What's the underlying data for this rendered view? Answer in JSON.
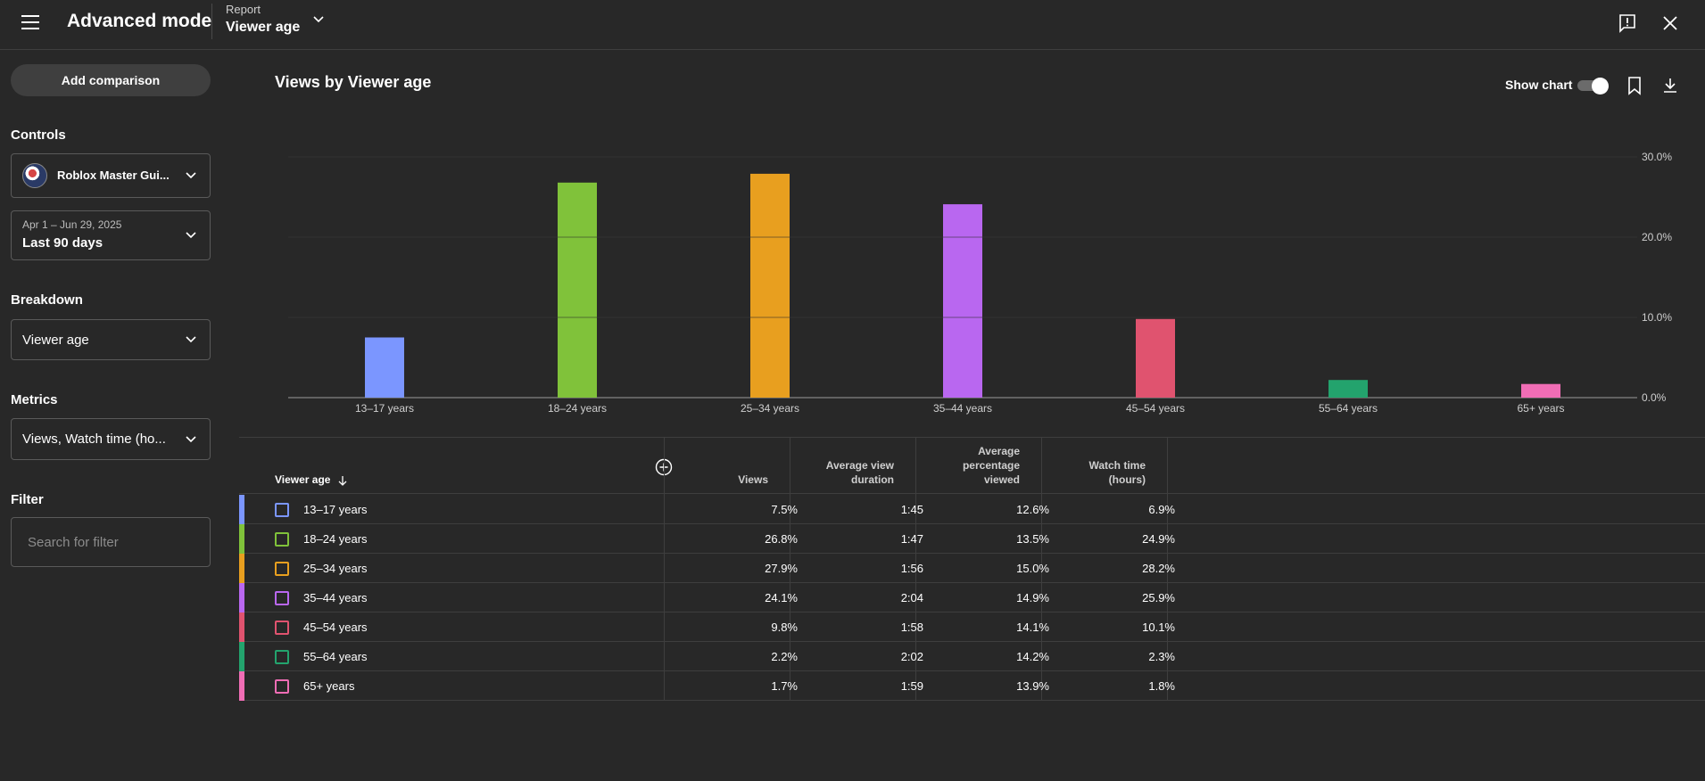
{
  "header": {
    "title": "Advanced mode",
    "report_caption": "Report",
    "report_value": "Viewer age"
  },
  "sidebar": {
    "add_comparison": "Add comparison",
    "controls_label": "Controls",
    "channel_name": "Roblox Master Gui...",
    "date_range_sub": "Apr 1 – Jun 29, 2025",
    "date_range": "Last 90 days",
    "breakdown_label": "Breakdown",
    "breakdown_value": "Viewer age",
    "metrics_label": "Metrics",
    "metrics_value": "Views, Watch time (ho...",
    "filter_label": "Filter",
    "filter_placeholder": "Search for filter"
  },
  "chart_header": {
    "title": "Views by Viewer age",
    "show_chart_label": "Show chart",
    "show_chart_on": true
  },
  "chart_data": {
    "type": "bar",
    "categories": [
      "13–17 years",
      "18–24 years",
      "25–34 years",
      "35–44 years",
      "45–54 years",
      "55–64 years",
      "65+ years"
    ],
    "values": [
      7.5,
      26.8,
      27.9,
      24.1,
      9.8,
      2.2,
      1.7
    ],
    "colors": [
      "#7b96ff",
      "#80c23a",
      "#e89f1f",
      "#b967f0",
      "#e0536f",
      "#23a36d",
      "#f06db5"
    ],
    "ylim": [
      0,
      30
    ],
    "yticks": [
      "0.0%",
      "10.0%",
      "20.0%",
      "30.0%"
    ],
    "grid": true
  },
  "table": {
    "headers": {
      "dimension": "Viewer age",
      "views": "Views",
      "avg_view_duration": [
        "Average view",
        "duration"
      ],
      "avg_pct_viewed": [
        "Average",
        "percentage",
        "viewed"
      ],
      "watch_time": [
        "Watch time",
        "(hours)"
      ]
    },
    "rows": [
      {
        "label": "13–17 years",
        "views": "7.5%",
        "avd": "1:45",
        "apv": "12.6%",
        "wt": "6.9%"
      },
      {
        "label": "18–24 years",
        "views": "26.8%",
        "avd": "1:47",
        "apv": "13.5%",
        "wt": "24.9%"
      },
      {
        "label": "25–34 years",
        "views": "27.9%",
        "avd": "1:56",
        "apv": "15.0%",
        "wt": "28.2%"
      },
      {
        "label": "35–44 years",
        "views": "24.1%",
        "avd": "2:04",
        "apv": "14.9%",
        "wt": "25.9%"
      },
      {
        "label": "45–54 years",
        "views": "9.8%",
        "avd": "1:58",
        "apv": "14.1%",
        "wt": "10.1%"
      },
      {
        "label": "55–64 years",
        "views": "2.2%",
        "avd": "2:02",
        "apv": "14.2%",
        "wt": "2.3%"
      },
      {
        "label": "65+ years",
        "views": "1.7%",
        "avd": "1:59",
        "apv": "13.9%",
        "wt": "1.8%"
      }
    ]
  },
  "icons": {
    "menu": "hamburger-icon",
    "report_dropdown": "chevron-down-icon",
    "feedback": "feedback-icon",
    "close": "close-icon",
    "bookmark": "bookmark-icon",
    "download": "download-icon",
    "add_column": "add-column-icon",
    "sort": "sort-down-icon"
  }
}
